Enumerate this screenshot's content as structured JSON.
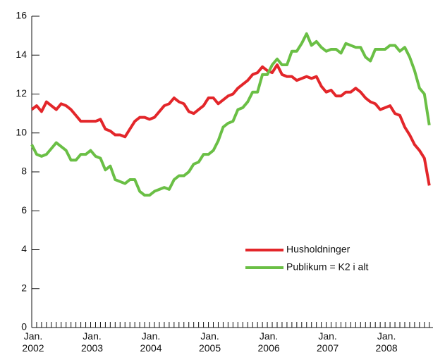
{
  "chart_data": {
    "type": "line",
    "categories": [
      "Jan. 2002",
      null,
      null,
      null,
      null,
      null,
      null,
      null,
      null,
      null,
      null,
      null,
      "Jan. 2003",
      null,
      null,
      null,
      null,
      null,
      null,
      null,
      null,
      null,
      null,
      null,
      "Jan. 2004",
      null,
      null,
      null,
      null,
      null,
      null,
      null,
      null,
      null,
      null,
      null,
      "Jan. 2005",
      null,
      null,
      null,
      null,
      null,
      null,
      null,
      null,
      null,
      null,
      null,
      "Jan. 2006",
      null,
      null,
      null,
      null,
      null,
      null,
      null,
      null,
      null,
      null,
      null,
      "Jan. 2007",
      null,
      null,
      null,
      null,
      null,
      null,
      null,
      null,
      null,
      null,
      null,
      "Jan. 2008",
      null,
      null,
      null,
      null,
      null,
      null,
      null,
      null,
      null
    ],
    "series": [
      {
        "name": "Husholdninger",
        "color": "#e3262a",
        "values": [
          11.2,
          11.4,
          11.1,
          11.6,
          11.4,
          11.2,
          11.5,
          11.4,
          11.2,
          10.9,
          10.6,
          10.6,
          10.6,
          10.6,
          10.7,
          10.2,
          10.1,
          9.9,
          9.9,
          9.8,
          10.2,
          10.6,
          10.8,
          10.8,
          10.7,
          10.8,
          11.1,
          11.4,
          11.5,
          11.8,
          11.6,
          11.5,
          11.1,
          11.0,
          11.2,
          11.4,
          11.8,
          11.8,
          11.5,
          11.7,
          11.9,
          12.0,
          12.3,
          12.5,
          12.7,
          13.0,
          13.1,
          13.4,
          13.2,
          13.1,
          13.5,
          13.0,
          12.9,
          12.9,
          12.7,
          12.8,
          12.9,
          12.8,
          12.9,
          12.4,
          12.1,
          12.2,
          11.9,
          11.9,
          12.1,
          12.1,
          12.3,
          12.1,
          11.8,
          11.6,
          11.5,
          11.2,
          11.3,
          11.4,
          11.0,
          10.9,
          10.3,
          9.9,
          9.4,
          9.1,
          8.7,
          7.3
        ]
      },
      {
        "name": "Publikum = K2 i alt",
        "color": "#6abf45",
        "values": [
          9.4,
          8.9,
          8.8,
          8.9,
          9.2,
          9.5,
          9.3,
          9.1,
          8.6,
          8.6,
          8.9,
          8.9,
          9.1,
          8.8,
          8.7,
          8.1,
          8.3,
          7.6,
          7.5,
          7.4,
          7.6,
          7.6,
          7.0,
          6.8,
          6.8,
          7.0,
          7.1,
          7.2,
          7.1,
          7.6,
          7.8,
          7.8,
          8.0,
          8.4,
          8.5,
          8.9,
          8.9,
          9.1,
          9.6,
          10.3,
          10.5,
          10.6,
          11.2,
          11.3,
          11.6,
          12.1,
          12.1,
          13.0,
          13.0,
          13.5,
          13.8,
          13.5,
          13.5,
          14.2,
          14.2,
          14.6,
          15.1,
          14.5,
          14.7,
          14.4,
          14.2,
          14.3,
          14.3,
          14.1,
          14.6,
          14.5,
          14.4,
          14.4,
          13.9,
          13.7,
          14.3,
          14.3,
          14.3,
          14.5,
          14.5,
          14.2,
          14.4,
          13.9,
          13.2,
          12.3,
          12.0,
          10.4
        ]
      }
    ],
    "ylim": [
      0,
      16
    ],
    "yticks": [
      0,
      2,
      4,
      6,
      8,
      10,
      12,
      14,
      16
    ],
    "legend": "lower right"
  }
}
